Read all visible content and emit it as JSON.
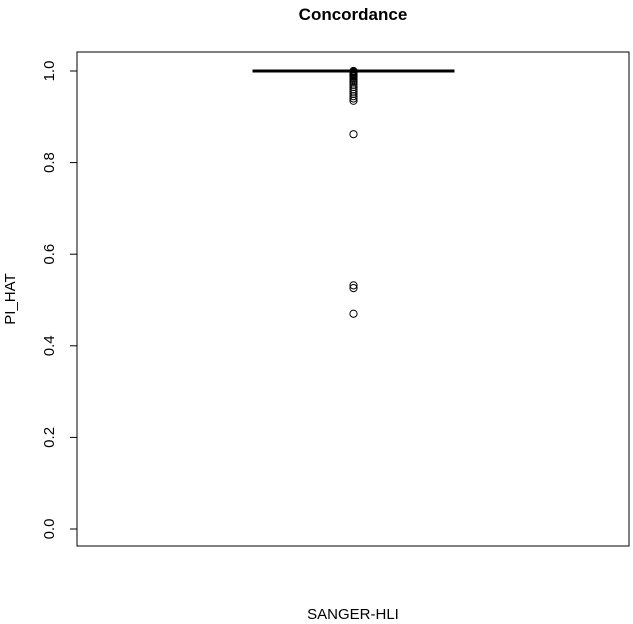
{
  "chart_data": {
    "type": "box",
    "title": "Concordance",
    "xlabel": "SANGER-HLI",
    "ylabel": "PI_HAT",
    "ylim": [
      0.0,
      1.0
    ],
    "yticks": [
      "0.0",
      "0.2",
      "0.4",
      "0.6",
      "0.8",
      "1.0"
    ],
    "grid": false,
    "categories": [
      "SANGER-HLI"
    ],
    "box": {
      "min": 1.0,
      "q1": 1.0,
      "median": 1.0,
      "q3": 1.0,
      "max": 1.0
    },
    "outliers": [
      1.0,
      0.998,
      0.996,
      0.994,
      0.992,
      0.99,
      0.988,
      0.985,
      0.982,
      0.978,
      0.975,
      0.97,
      0.965,
      0.96,
      0.955,
      0.95,
      0.945,
      0.94,
      0.935,
      0.862,
      0.532,
      0.526,
      0.47
    ]
  }
}
